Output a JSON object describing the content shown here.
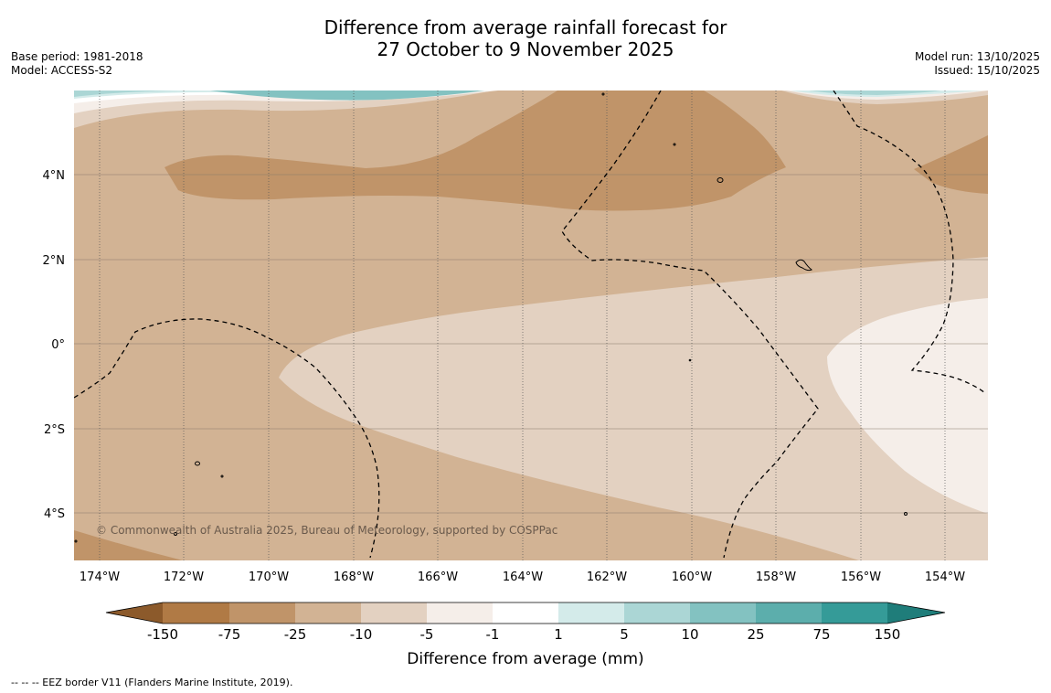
{
  "title": {
    "line1": "Difference from average rainfall forecast for",
    "line2": "27 October to 9 November 2025"
  },
  "meta_left": {
    "base_period": "Base period: 1981-2018",
    "model": "Model: ACCESS-S2"
  },
  "meta_right": {
    "model_run": "Model run: 13/10/2025",
    "issued": "Issued: 15/10/2025"
  },
  "map": {
    "copyright": "© Commonwealth of Australia 2025, Bureau of Meteorology, supported by COSPPac",
    "lat_labels": [
      "4°N",
      "2°N",
      "0°",
      "2°S",
      "4°S"
    ],
    "lon_labels": [
      "174°W",
      "172°W",
      "170°W",
      "168°W",
      "166°W",
      "164°W",
      "162°W",
      "160°W",
      "158°W",
      "156°W",
      "154°W"
    ]
  },
  "legend": {
    "ticks": [
      "-150",
      "-75",
      "-25",
      "-10",
      "-5",
      "-1",
      "1",
      "5",
      "10",
      "25",
      "75",
      "150"
    ],
    "colors": {
      "under": "#8c5a2b",
      "c1": "#b07a45",
      "c2": "#c09469",
      "c3": "#d2b394",
      "c4": "#e3d1c1",
      "c5": "#f5eee9",
      "c6": "#ffffff",
      "c7": "#d4ebea",
      "c8": "#abd6d5",
      "c9": "#83c2c1",
      "c10": "#5caeac",
      "c11": "#359b98",
      "over": "#1f7d7a"
    },
    "label": "Difference from average (mm)"
  },
  "footer": {
    "eez_note": "--  --  -- EEZ border V11 (Flanders Marine Institute, 2019)."
  }
}
